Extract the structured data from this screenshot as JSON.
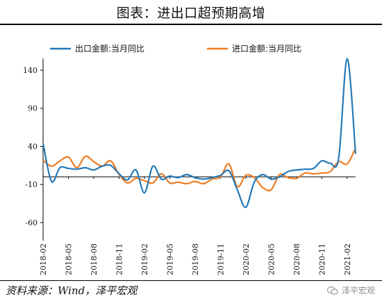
{
  "page": {
    "title": "图表：进出口超预期高增",
    "source": "资料来源：Wind，泽平宏观",
    "watermark": "泽平宏观"
  },
  "chart_data": {
    "type": "line",
    "title": "图表：进出口超预期高增",
    "xlabel": "",
    "ylabel": "",
    "x": [
      "2018-02",
      "2018-03",
      "2018-04",
      "2018-05",
      "2018-06",
      "2018-07",
      "2018-08",
      "2018-09",
      "2018-10",
      "2018-11",
      "2018-12",
      "2019-01",
      "2019-02",
      "2019-03",
      "2019-04",
      "2019-05",
      "2019-06",
      "2019-07",
      "2019-08",
      "2019-09",
      "2019-10",
      "2019-11",
      "2019-12",
      "2020-01",
      "2020-02",
      "2020-03",
      "2020-04",
      "2020-05",
      "2020-06",
      "2020-07",
      "2020-08",
      "2020-09",
      "2020-10",
      "2020-11",
      "2020-12",
      "2021-01",
      "2021-02",
      "2021-03"
    ],
    "xticks": [
      "2018-02",
      "2018-05",
      "2018-08",
      "2018-11",
      "2019-02",
      "2019-05",
      "2019-08",
      "2019-11",
      "2020-02",
      "2020-05",
      "2020-08",
      "2020-11",
      "2021-02"
    ],
    "ylim": [
      -60,
      150
    ],
    "yticks": [
      -60,
      -10,
      40,
      90,
      140
    ],
    "legend_position": "top",
    "grid": false,
    "series": [
      {
        "name": "出口金额:当月同比",
        "color": "#2479b8",
        "values": [
          44,
          -6,
          12,
          11,
          10,
          12,
          9,
          14,
          15,
          4,
          -4,
          9,
          -21,
          14,
          -3,
          1,
          -1,
          3,
          -1,
          -3,
          -1,
          2,
          8,
          -17,
          -40,
          -7,
          3,
          -3,
          0,
          7,
          9,
          10,
          11,
          21,
          18,
          25,
          155,
          30
        ]
      },
      {
        "name": "进口金额:当月同比",
        "color": "#ee7c22",
        "values": [
          22,
          14,
          21,
          26,
          12,
          27,
          20,
          14,
          21,
          3,
          -8,
          -2,
          -5,
          -8,
          4,
          -8,
          -7,
          -9,
          -6,
          -9,
          -3,
          0,
          17,
          -13,
          2,
          -1,
          -14,
          -17,
          3,
          -1,
          -2,
          5,
          4,
          5,
          7,
          20,
          17,
          38
        ]
      }
    ]
  }
}
